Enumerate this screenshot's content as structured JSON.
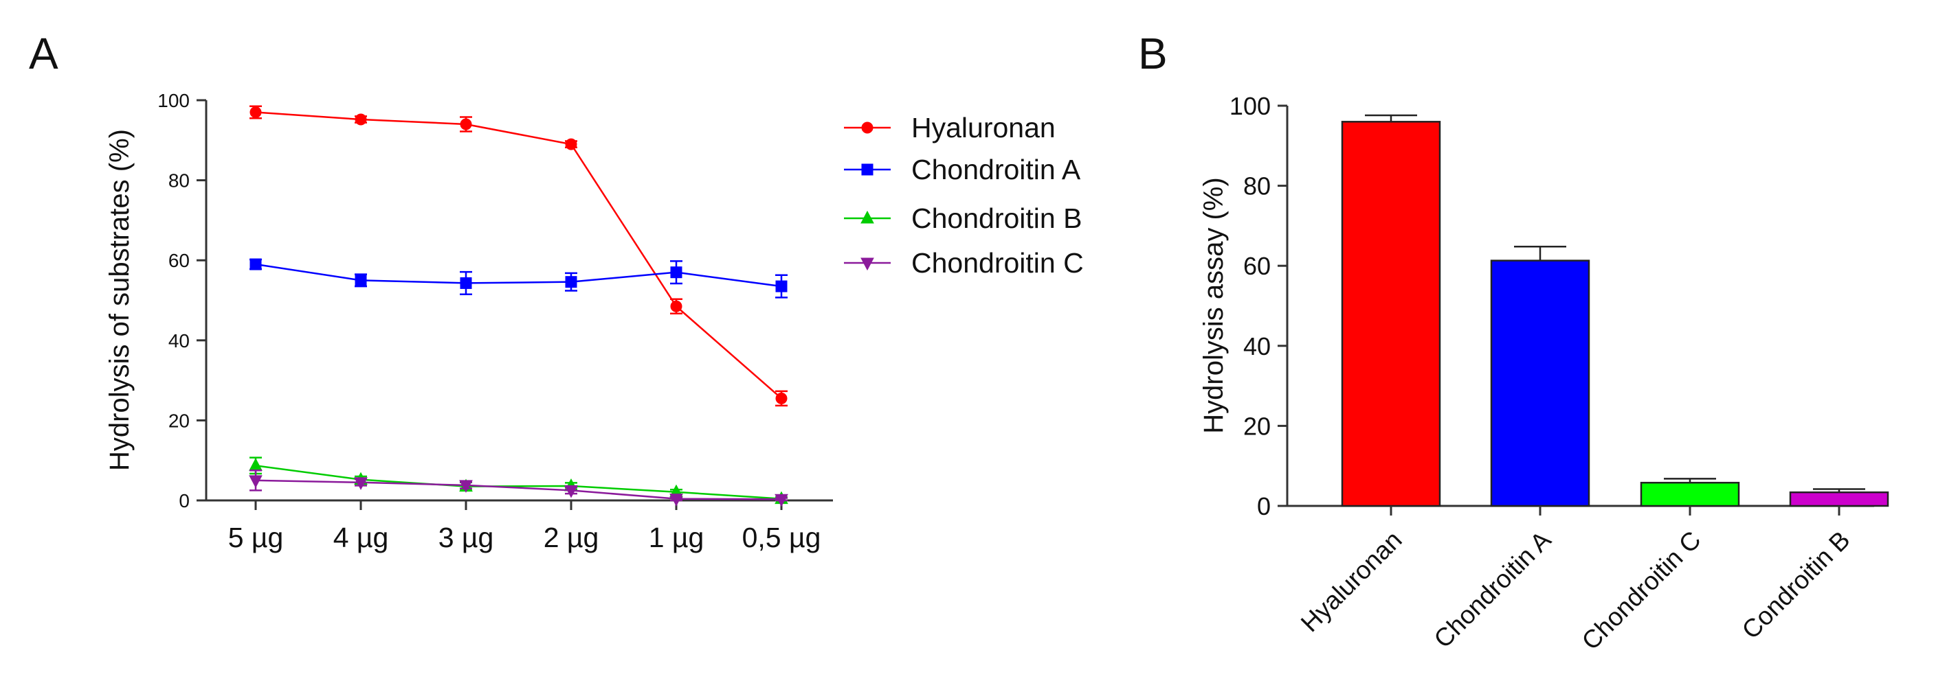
{
  "chart_data": [
    {
      "panel": "A",
      "type": "line",
      "title": "",
      "xlabel": "",
      "ylabel": "Hydrolysis of substrates (%)",
      "categories": [
        "5 µg",
        "4 µg",
        "3 µg",
        "2 µg",
        "1 µg",
        "0,5 µg"
      ],
      "ylim": [
        0,
        100
      ],
      "yticks": [
        0,
        20,
        40,
        60,
        80,
        100
      ],
      "legend_position": "right",
      "series": [
        {
          "name": "Hyaluronan",
          "color": "#ff0000",
          "marker": "circle",
          "values": [
            97,
            95.2,
            94,
            89,
            48.5,
            25.5
          ],
          "errors": [
            1.5,
            0.8,
            1.8,
            0.8,
            1.8,
            1.8
          ]
        },
        {
          "name": "Chondroitin A",
          "color": "#0000ff",
          "marker": "square",
          "values": [
            59,
            55,
            54.3,
            54.6,
            57,
            53.5
          ],
          "errors": [
            1.2,
            1.5,
            2.8,
            2.2,
            2.8,
            2.8
          ]
        },
        {
          "name": "Chondroitin B",
          "color": "#00cc00",
          "marker": "triangle-up",
          "values": [
            8.7,
            5.2,
            3.5,
            3.6,
            2.1,
            0.4
          ],
          "errors": [
            2.0,
            0.8,
            1.0,
            0.8,
            0.6,
            0.4
          ]
        },
        {
          "name": "Chondroitin C",
          "color": "#8b1a9b",
          "marker": "triangle-down",
          "values": [
            5.0,
            4.5,
            3.8,
            2.5,
            0.4,
            0.3
          ],
          "errors": [
            2.5,
            0.8,
            0.8,
            0.8,
            0.4,
            0.3
          ]
        }
      ]
    },
    {
      "panel": "B",
      "type": "bar",
      "title": "",
      "xlabel": "",
      "ylabel": "Hydrolysis assay (%)",
      "categories": [
        "Hyaluronan",
        "Chondroitin A",
        "Chondroitin C",
        "Condroitin B"
      ],
      "values": [
        96,
        61.3,
        5.8,
        3.4
      ],
      "errors": [
        1.6,
        3.5,
        1.0,
        0.8
      ],
      "colors": [
        "#ff0000",
        "#0000ff",
        "#00ff00",
        "#cc00cc"
      ],
      "ylim": [
        0,
        100
      ],
      "yticks": [
        0,
        20,
        40,
        60,
        80,
        100
      ]
    }
  ]
}
